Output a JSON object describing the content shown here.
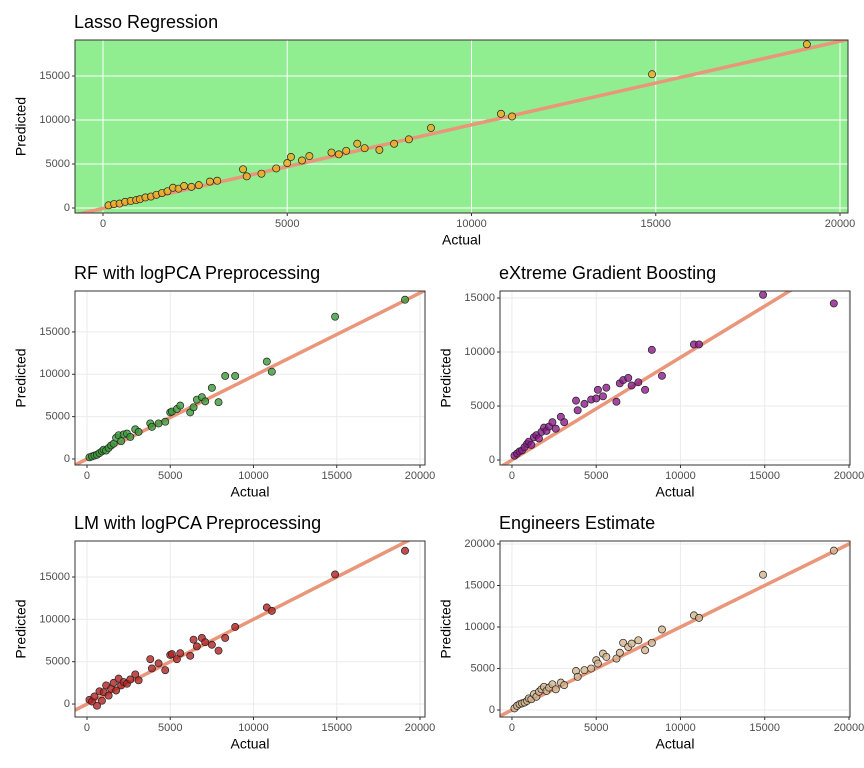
{
  "chart_data": [
    {
      "type": "scatter",
      "title": "Lasso Regression",
      "x_label": "Actual",
      "y_label": "Predicted",
      "x": [
        150,
        300,
        450,
        600,
        750,
        900,
        1000,
        1150,
        1300,
        1450,
        1600,
        1750,
        1900,
        2050,
        2200,
        2400,
        2600,
        2900,
        3100,
        3800,
        3900,
        4300,
        4700,
        5000,
        5100,
        5400,
        5600,
        6200,
        6400,
        6600,
        6900,
        7100,
        7500,
        7900,
        8300,
        8900,
        10800,
        11100,
        14900,
        19100
      ],
      "series": [
        {
          "color": "#f4a91e",
          "values": [
            300,
            450,
            500,
            700,
            800,
            900,
            1000,
            1200,
            1300,
            1500,
            1700,
            1900,
            2300,
            2200,
            2500,
            2400,
            2600,
            3000,
            3100,
            4400,
            3600,
            3900,
            4500,
            5100,
            5800,
            5400,
            5900,
            6300,
            6100,
            6500,
            7300,
            6800,
            6600,
            7300,
            7800,
            9100,
            10700,
            10400,
            15200,
            18600
          ]
        }
      ],
      "xlim": [
        -760,
        20217
      ],
      "ylim": [
        -568,
        19090
      ],
      "xticks": [
        0,
        5000,
        10000,
        15000,
        20000
      ],
      "yticks": [
        0,
        5000,
        10000,
        15000
      ],
      "grid": true,
      "background": "#90ee90",
      "grid_color": "#ffffff",
      "fit_line": {
        "slope": 0.95,
        "intercept": -50,
        "color": "#e9967a"
      }
    },
    {
      "type": "scatter",
      "title": "RF with logPCA Preprocessing",
      "x_label": "Actual",
      "y_label": "Predicted",
      "x": [
        150,
        300,
        450,
        600,
        750,
        900,
        1000,
        1150,
        1300,
        1450,
        1600,
        1750,
        1900,
        2050,
        2200,
        2400,
        2600,
        2900,
        3100,
        3800,
        3900,
        4300,
        4700,
        5000,
        5100,
        5400,
        5600,
        6200,
        6400,
        6600,
        6900,
        7100,
        7500,
        7900,
        8300,
        8900,
        10800,
        11100,
        14900,
        19100
      ],
      "series": [
        {
          "color": "#3a9a3a",
          "values": [
            200,
            300,
            400,
            500,
            700,
            900,
            1100,
            1000,
            1300,
            1600,
            1800,
            2500,
            2800,
            2100,
            2900,
            3000,
            2600,
            3500,
            3200,
            4200,
            3800,
            4200,
            4400,
            5500,
            5600,
            5900,
            6300,
            5500,
            6100,
            7000,
            7300,
            6800,
            8400,
            6700,
            9800,
            9800,
            11500,
            10300,
            16800,
            18800
          ]
        }
      ],
      "xlim": [
        -720,
        20300
      ],
      "ylim": [
        -710,
        19830
      ],
      "xticks": [
        0,
        5000,
        10000,
        15000,
        20000
      ],
      "yticks": [
        0,
        5000,
        10000,
        15000
      ],
      "grid": true,
      "background": "#ffffff",
      "grid_color": "#ebebeb",
      "fit_line": {
        "slope": 0.98,
        "intercept": 0,
        "color": "#e9967a"
      }
    },
    {
      "type": "scatter",
      "title": "eXtreme Gradient Boosting",
      "x_label": "Actual",
      "y_label": "Predicted",
      "x": [
        150,
        300,
        450,
        600,
        750,
        900,
        1000,
        1150,
        1300,
        1450,
        1600,
        1750,
        1900,
        2050,
        2200,
        2400,
        2600,
        2900,
        3100,
        3800,
        3900,
        4300,
        4700,
        5000,
        5100,
        5400,
        5600,
        6200,
        6400,
        6600,
        6900,
        7100,
        7500,
        7900,
        8300,
        8900,
        10800,
        11100,
        14900,
        19100
      ],
      "series": [
        {
          "color": "#8b1a8b",
          "values": [
            400,
            600,
            800,
            900,
            1200,
            1500,
            1700,
            1400,
            2100,
            2300,
            2000,
            2600,
            3000,
            2700,
            3100,
            3500,
            2900,
            4000,
            3500,
            5500,
            4600,
            5200,
            5600,
            5700,
            6500,
            5900,
            6700,
            5400,
            7100,
            7400,
            7600,
            6900,
            7200,
            6500,
            10200,
            7800,
            10700,
            10700,
            15300,
            14500
          ]
        }
      ],
      "xlim": [
        -710,
        20060
      ],
      "ylim": [
        -460,
        15650
      ],
      "xticks": [
        0,
        5000,
        10000,
        15000,
        20000
      ],
      "yticks": [
        0,
        5000,
        10000,
        15000
      ],
      "grid": true,
      "background": "#ffffff",
      "grid_color": "#ebebeb",
      "fit_line": {
        "slope": 0.95,
        "intercept": 0,
        "color": "#e9967a"
      }
    },
    {
      "type": "scatter",
      "title": "LM with logPCA Preprocessing",
      "x_label": "Actual",
      "y_label": "Predicted",
      "x": [
        150,
        300,
        450,
        600,
        750,
        900,
        1000,
        1150,
        1300,
        1450,
        1600,
        1750,
        1900,
        2050,
        2200,
        2400,
        2600,
        2900,
        3100,
        3800,
        3900,
        4300,
        4700,
        5000,
        5100,
        5400,
        5600,
        6200,
        6400,
        6600,
        6900,
        7100,
        7500,
        7900,
        8300,
        8900,
        10800,
        11100,
        14900,
        19100
      ],
      "series": [
        {
          "color": "#b22222",
          "values": [
            500,
            300,
            900,
            -200,
            1500,
            400,
            1400,
            2200,
            1000,
            1800,
            2500,
            1600,
            3000,
            2200,
            2600,
            2400,
            2900,
            3500,
            2800,
            5300,
            4200,
            4800,
            4000,
            5800,
            5900,
            5300,
            6000,
            5700,
            7600,
            6800,
            7800,
            7300,
            7000,
            6300,
            7800,
            9100,
            11400,
            11000,
            15300,
            18100
          ]
        }
      ],
      "xlim": [
        -720,
        20300
      ],
      "ylim": [
        -1530,
        19250
      ],
      "xticks": [
        0,
        5000,
        10000,
        15000,
        20000
      ],
      "yticks": [
        0,
        5000,
        10000,
        15000
      ],
      "grid": true,
      "background": "#ffffff",
      "grid_color": "#ebebeb",
      "fit_line": {
        "slope": 1.0,
        "intercept": 0,
        "color": "#e9967a"
      }
    },
    {
      "type": "scatter",
      "title": "Engineers Estimate",
      "x_label": "Actual",
      "y_label": "Predicted",
      "x": [
        150,
        300,
        450,
        600,
        750,
        900,
        1000,
        1150,
        1300,
        1450,
        1600,
        1750,
        1900,
        2050,
        2200,
        2400,
        2600,
        2900,
        3100,
        3800,
        3900,
        4300,
        4700,
        5000,
        5100,
        5400,
        5600,
        6200,
        6400,
        6600,
        6900,
        7100,
        7500,
        7900,
        8300,
        8900,
        10800,
        11100,
        14900,
        19100
      ],
      "series": [
        {
          "color": "#d2b48c",
          "values": [
            200,
            500,
            700,
            800,
            900,
            1100,
            1400,
            1300,
            1900,
            1600,
            2200,
            2500,
            2800,
            2300,
            2700,
            3100,
            2500,
            3300,
            3000,
            4700,
            4000,
            4800,
            5000,
            6000,
            5600,
            6800,
            6400,
            6200,
            6900,
            8100,
            7600,
            8000,
            8400,
            7200,
            8100,
            9700,
            11400,
            11100,
            16300,
            19200
          ]
        }
      ],
      "xlim": [
        -710,
        20060
      ],
      "ylim": [
        -840,
        20360
      ],
      "xticks": [
        0,
        5000,
        10000,
        15000,
        20000
      ],
      "yticks": [
        0,
        5000,
        10000,
        15000,
        20000
      ],
      "grid": true,
      "background": "#ffffff",
      "grid_color": "#ebebeb",
      "fit_line": {
        "slope": 1.0,
        "intercept": 0,
        "color": "#e9967a"
      }
    }
  ]
}
